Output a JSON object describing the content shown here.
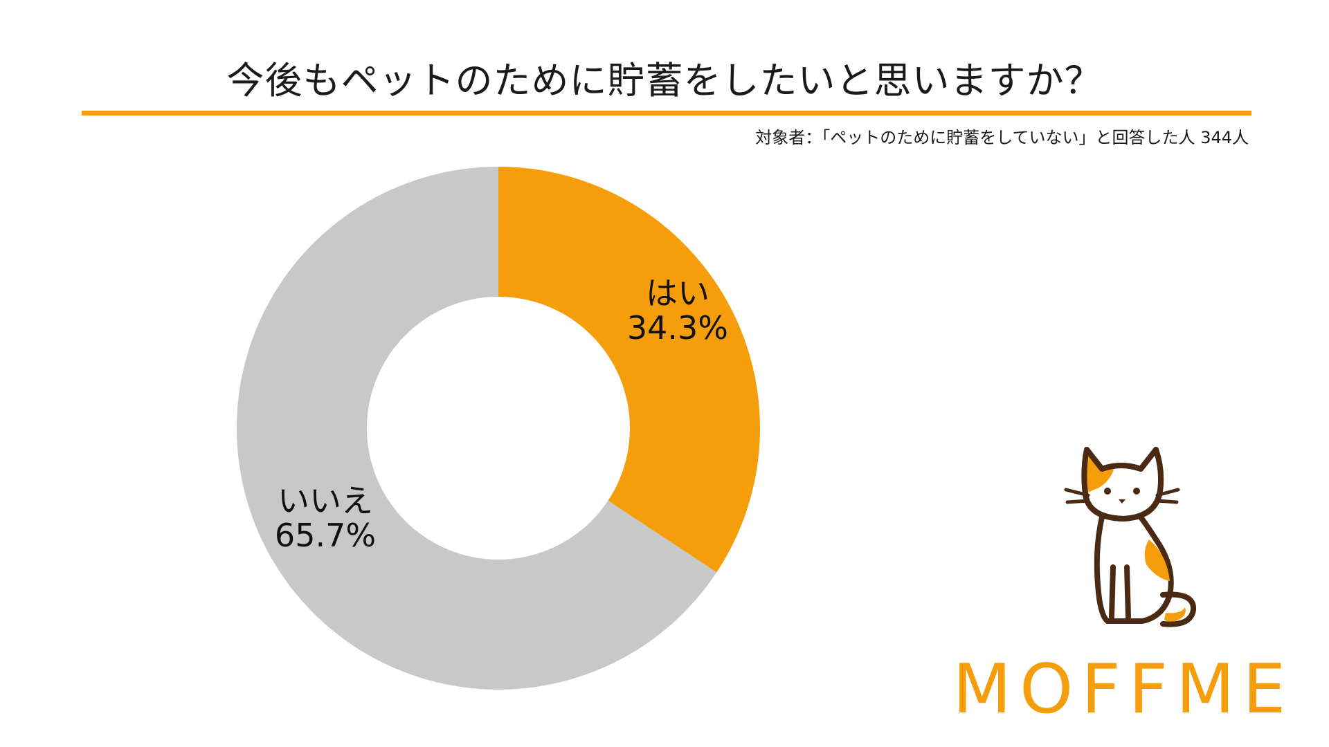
{
  "title": "今後もペットのために貯蓄をしたいと思いますか？",
  "subtitle": "対象者：「ペットのために貯蓄をしていない」と回答した人 344人",
  "colors": {
    "accent": "#f59d0b",
    "no_slice": "#c8c8c8",
    "text": "#111111",
    "cat_outline": "#4a2a12"
  },
  "chart_data": {
    "type": "pie",
    "donut": true,
    "title": "今後もペットのために貯蓄をしたいと思いますか？",
    "categories": [
      "はい",
      "いいえ"
    ],
    "values": [
      34.3,
      65.7
    ],
    "unit": "%",
    "labels": [
      {
        "name": "はい",
        "value_text": "34.3%"
      },
      {
        "name": "いいえ",
        "value_text": "65.7%"
      }
    ],
    "colors": [
      "#f59d0b",
      "#c8c8c8"
    ],
    "start": "12 o'clock",
    "direction": "clockwise"
  },
  "logo": {
    "text": "MOFFME",
    "icon": "calico-cat-icon"
  }
}
